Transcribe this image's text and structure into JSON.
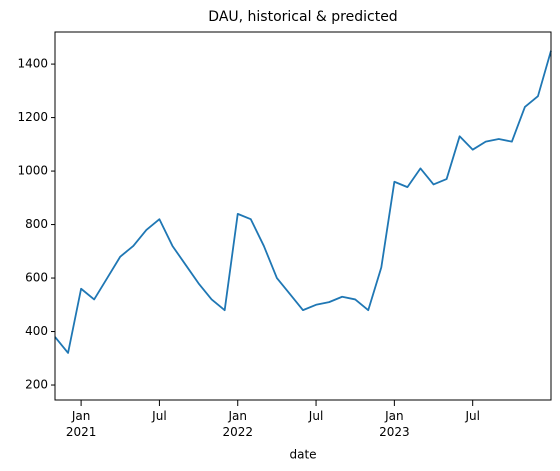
{
  "chart_data": {
    "type": "line",
    "title": "DAU, historical & predicted",
    "x_label": "date",
    "x": [
      "2020-11",
      "2020-12",
      "2021-01",
      "2021-02",
      "2021-03",
      "2021-04",
      "2021-05",
      "2021-06",
      "2021-07",
      "2021-08",
      "2021-09",
      "2021-10",
      "2021-11",
      "2021-12",
      "2022-01",
      "2022-02",
      "2022-03",
      "2022-04",
      "2022-05",
      "2022-06",
      "2022-07",
      "2022-08",
      "2022-09",
      "2022-10",
      "2022-11",
      "2022-12",
      "2023-01",
      "2023-02",
      "2023-03",
      "2023-04",
      "2023-05",
      "2023-06",
      "2023-07",
      "2023-08",
      "2023-09",
      "2023-10",
      "2023-11",
      "2023-12",
      "2024-01"
    ],
    "series": [
      {
        "color": "#1f77b4",
        "values": [
          380,
          320,
          560,
          520,
          600,
          680,
          720,
          780,
          820,
          720,
          650,
          580,
          520,
          480,
          840,
          820,
          720,
          600,
          540,
          480,
          500,
          510,
          530,
          520,
          480,
          640,
          960,
          940,
          1010,
          950,
          970,
          1130,
          1080,
          1110,
          1120,
          1110,
          1240,
          1280,
          1450
        ]
      }
    ],
    "xlim": [
      "2020-11",
      "2024-01"
    ],
    "xticks": [
      {
        "value": "2021-01",
        "label": "Jan 2021"
      },
      {
        "value": "2021-07",
        "label": "Jul"
      },
      {
        "value": "2022-01",
        "label": "Jan 2022"
      },
      {
        "value": "2022-07",
        "label": "Jul"
      },
      {
        "value": "2023-01",
        "label": "Jan 2023"
      },
      {
        "value": "2023-07",
        "label": "Jul"
      }
    ],
    "ylim": [
      144,
      1520
    ],
    "yticks": [
      200,
      400,
      600,
      800,
      1000,
      1200,
      1400
    ],
    "grid": false
  }
}
